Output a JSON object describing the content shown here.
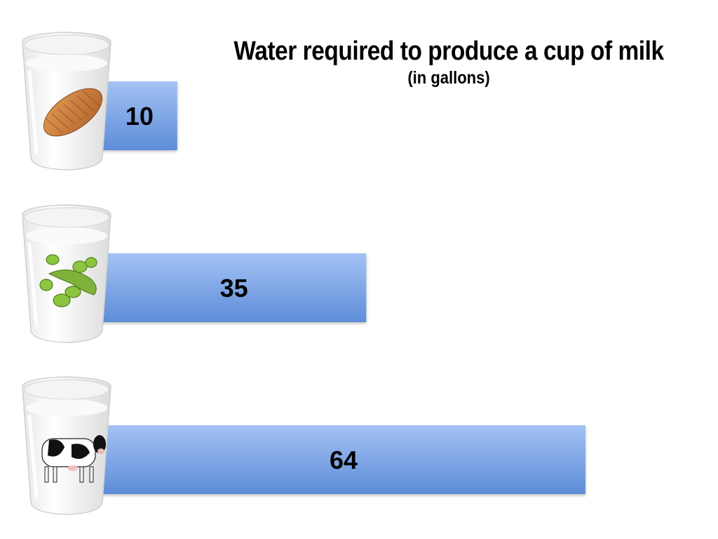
{
  "chart_data": {
    "type": "bar",
    "orientation": "horizontal",
    "title": "Water required to produce a cup of milk",
    "subtitle": "(in gallons)",
    "categories": [
      "almond-milk-glass-icon",
      "soy-milk-glass-icon",
      "cow-milk-glass-icon"
    ],
    "values": [
      10,
      35,
      64
    ],
    "data_labels": [
      "10",
      "35",
      "64"
    ],
    "xlim": [
      0,
      64
    ],
    "grid": false,
    "legend": "none",
    "colors": {
      "bar_top": "#a4c2f4",
      "bar_bottom": "#5d8dd8"
    }
  }
}
